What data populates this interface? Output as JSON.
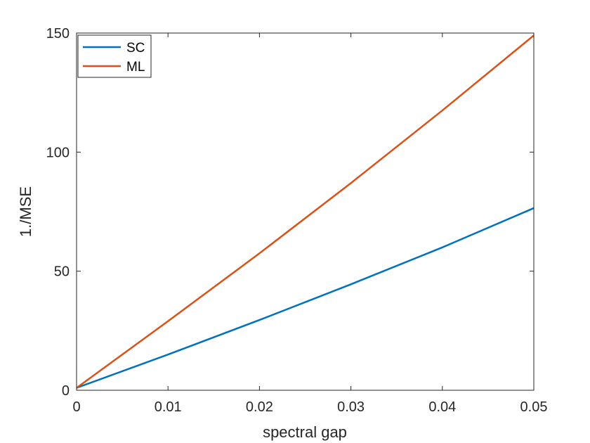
{
  "chart_data": {
    "type": "line",
    "xlabel": "spectral gap",
    "ylabel": "1./MSE",
    "xlim": [
      0,
      0.05
    ],
    "ylim": [
      0,
      150
    ],
    "xticks": [
      0,
      0.01,
      0.02,
      0.03,
      0.04,
      0.05
    ],
    "xtick_labels": [
      "0",
      "0.01",
      "0.02",
      "0.03",
      "0.04",
      "0.05"
    ],
    "yticks": [
      0,
      50,
      100,
      150
    ],
    "ytick_labels": [
      "0",
      "50",
      "100",
      "150"
    ],
    "grid": false,
    "legend_position": "top-left",
    "series": [
      {
        "name": "SC",
        "color": "#0072BD",
        "x": [
          0,
          0.01,
          0.02,
          0.03,
          0.04,
          0.05
        ],
        "y": [
          1,
          15,
          29.5,
          44.5,
          60,
          76.5
        ]
      },
      {
        "name": "ML",
        "color": "#D95319",
        "x": [
          0,
          0.01,
          0.02,
          0.03,
          0.04,
          0.05
        ],
        "y": [
          1,
          29,
          57.5,
          87,
          117.5,
          149
        ]
      }
    ]
  }
}
